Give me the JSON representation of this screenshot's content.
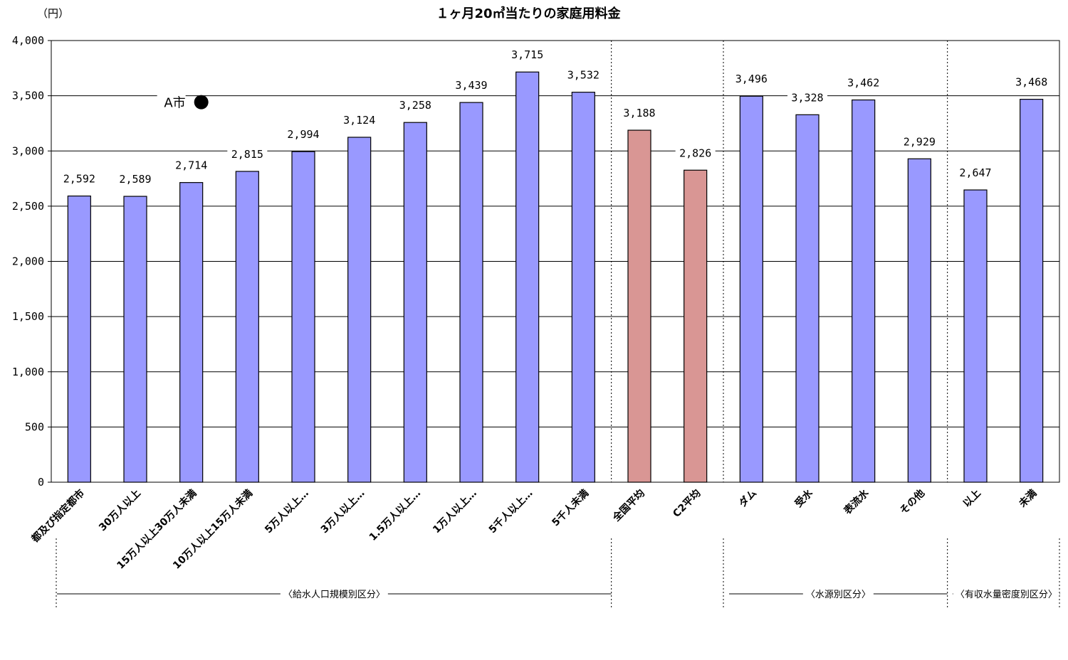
{
  "chart_data": {
    "type": "bar",
    "title": "１ヶ月20㎥当たりの家庭用料金",
    "unit_label": "（円）",
    "ylim": [
      0,
      4000
    ],
    "yticks": [
      "0",
      "500",
      "1,000",
      "1,500",
      "2,000",
      "2,500",
      "3,000",
      "3,500",
      "4,000"
    ],
    "ytick_values": [
      0,
      500,
      1000,
      1500,
      2000,
      2500,
      3000,
      3500,
      4000
    ],
    "grid": true,
    "categories": [
      "都及び指定都市",
      "30万人以上",
      "15万人以上30万人未満",
      "10万人以上15万人未満",
      "5万人以上…",
      "3万人以上…",
      "1.5万人以上…",
      "1万人以上…",
      "5千人以上…",
      "5千人未満",
      "全国平均",
      "C2平均",
      "ダム",
      "受水",
      "表流水",
      "その他",
      "以上",
      "未満"
    ],
    "values": [
      2592,
      2589,
      2714,
      2815,
      2994,
      3124,
      3258,
      3439,
      3715,
      3532,
      3188,
      2826,
      3496,
      3328,
      3462,
      2929,
      2647,
      3468
    ],
    "value_labels": [
      "2,592",
      "2,589",
      "2,714",
      "2,815",
      "2,994",
      "3,124",
      "3,258",
      "3,439",
      "3,715",
      "3,532",
      "3,188",
      "2,826",
      "3,496",
      "3,328",
      "3,462",
      "2,929",
      "2,647",
      "3,468"
    ],
    "bar_colors": [
      "#9999ff",
      "#9999ff",
      "#9999ff",
      "#9999ff",
      "#9999ff",
      "#9999ff",
      "#9999ff",
      "#9999ff",
      "#9999ff",
      "#9999ff",
      "#d99694",
      "#d99694",
      "#9999ff",
      "#9999ff",
      "#9999ff",
      "#9999ff",
      "#9999ff",
      "#9999ff"
    ],
    "groups": [
      {
        "label": "〈給水人口規模別区分〉",
        "from": 0,
        "to": 9
      },
      {
        "label": "〈水源別区分〉",
        "from": 12,
        "to": 15
      },
      {
        "label": "〈有収水量密度別区分〉",
        "from": 16,
        "to": 17
      }
    ],
    "annotation": {
      "label": "A市",
      "value": 3500,
      "category_index": 2
    }
  }
}
